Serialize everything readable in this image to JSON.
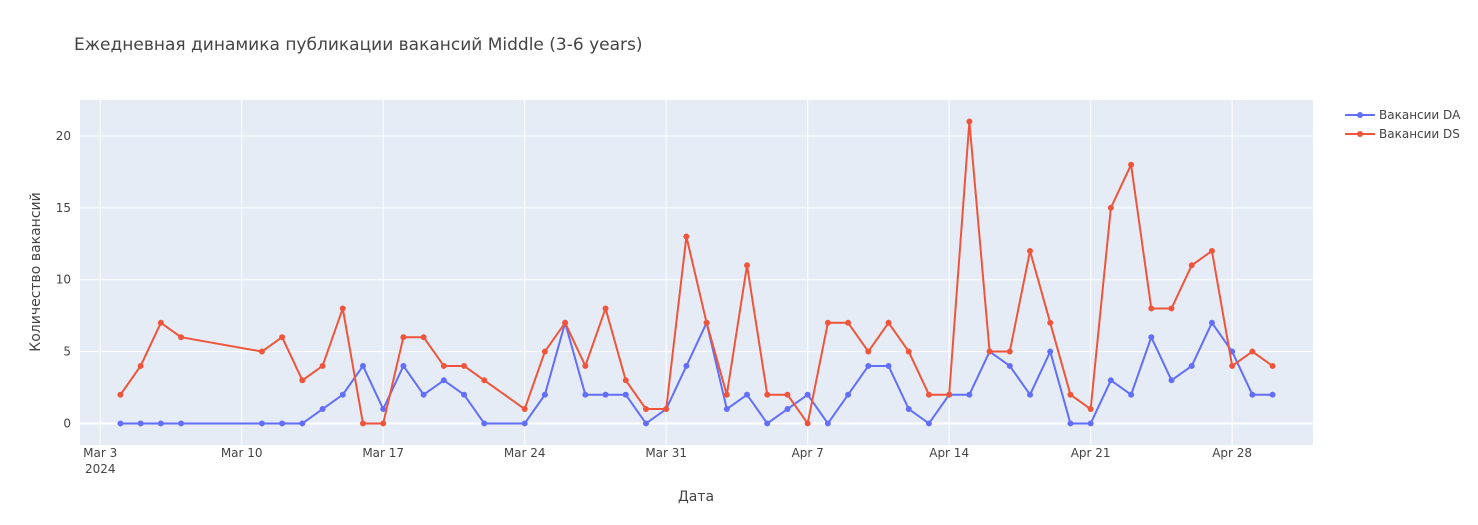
{
  "chart_data": {
    "type": "line",
    "title": "Ежедневная динамика публикации вакансий Middle (3-6 years)",
    "xlabel": "Дата",
    "ylabel": "Количество вакансий",
    "x_axis_type": "date",
    "xlim": [
      "2024-03-02",
      "2024-05-02"
    ],
    "ylim": [
      -1.5,
      22.5
    ],
    "grid": true,
    "legend_position": "top-right",
    "x_ticks": [
      {
        "value": "2024-03-03",
        "label": "Mar 3",
        "sublabel": "2024"
      },
      {
        "value": "2024-03-10",
        "label": "Mar 10"
      },
      {
        "value": "2024-03-17",
        "label": "Mar 17"
      },
      {
        "value": "2024-03-24",
        "label": "Mar 24"
      },
      {
        "value": "2024-03-31",
        "label": "Mar 31"
      },
      {
        "value": "2024-04-07",
        "label": "Apr 7"
      },
      {
        "value": "2024-04-14",
        "label": "Apr 14"
      },
      {
        "value": "2024-04-21",
        "label": "Apr 21"
      },
      {
        "value": "2024-04-28",
        "label": "Apr 28"
      }
    ],
    "y_ticks": [
      0,
      5,
      10,
      15,
      20
    ],
    "series": [
      {
        "name": "Вакансии DA",
        "color": "#636efa",
        "points": [
          [
            "2024-03-04",
            0
          ],
          [
            "2024-03-05",
            0
          ],
          [
            "2024-03-06",
            0
          ],
          [
            "2024-03-07",
            0
          ],
          [
            "2024-03-11",
            0
          ],
          [
            "2024-03-12",
            0
          ],
          [
            "2024-03-13",
            0
          ],
          [
            "2024-03-14",
            1
          ],
          [
            "2024-03-15",
            2
          ],
          [
            "2024-03-16",
            4
          ],
          [
            "2024-03-17",
            1
          ],
          [
            "2024-03-18",
            4
          ],
          [
            "2024-03-19",
            2
          ],
          [
            "2024-03-20",
            3
          ],
          [
            "2024-03-21",
            2
          ],
          [
            "2024-03-22",
            0
          ],
          [
            "2024-03-24",
            0
          ],
          [
            "2024-03-25",
            2
          ],
          [
            "2024-03-26",
            7
          ],
          [
            "2024-03-27",
            2
          ],
          [
            "2024-03-28",
            2
          ],
          [
            "2024-03-29",
            2
          ],
          [
            "2024-03-30",
            0
          ],
          [
            "2024-03-31",
            1
          ],
          [
            "2024-04-01",
            4
          ],
          [
            "2024-04-02",
            7
          ],
          [
            "2024-04-03",
            1
          ],
          [
            "2024-04-04",
            2
          ],
          [
            "2024-04-05",
            0
          ],
          [
            "2024-04-06",
            1
          ],
          [
            "2024-04-07",
            2
          ],
          [
            "2024-04-08",
            0
          ],
          [
            "2024-04-09",
            2
          ],
          [
            "2024-04-10",
            4
          ],
          [
            "2024-04-11",
            4
          ],
          [
            "2024-04-12",
            1
          ],
          [
            "2024-04-13",
            0
          ],
          [
            "2024-04-14",
            2
          ],
          [
            "2024-04-15",
            2
          ],
          [
            "2024-04-16",
            5
          ],
          [
            "2024-04-17",
            4
          ],
          [
            "2024-04-18",
            2
          ],
          [
            "2024-04-19",
            5
          ],
          [
            "2024-04-20",
            0
          ],
          [
            "2024-04-21",
            0
          ],
          [
            "2024-04-22",
            3
          ],
          [
            "2024-04-23",
            2
          ],
          [
            "2024-04-24",
            6
          ],
          [
            "2024-04-25",
            3
          ],
          [
            "2024-04-26",
            4
          ],
          [
            "2024-04-27",
            7
          ],
          [
            "2024-04-28",
            5
          ],
          [
            "2024-04-29",
            2
          ],
          [
            "2024-04-30",
            2
          ]
        ]
      },
      {
        "name": "Вакансии DS",
        "color": "#ef553b",
        "points": [
          [
            "2024-03-04",
            2
          ],
          [
            "2024-03-05",
            4
          ],
          [
            "2024-03-06",
            7
          ],
          [
            "2024-03-07",
            6
          ],
          [
            "2024-03-11",
            5
          ],
          [
            "2024-03-12",
            6
          ],
          [
            "2024-03-13",
            3
          ],
          [
            "2024-03-14",
            4
          ],
          [
            "2024-03-15",
            8
          ],
          [
            "2024-03-16",
            0
          ],
          [
            "2024-03-17",
            0
          ],
          [
            "2024-03-18",
            6
          ],
          [
            "2024-03-19",
            6
          ],
          [
            "2024-03-20",
            4
          ],
          [
            "2024-03-21",
            4
          ],
          [
            "2024-03-22",
            3
          ],
          [
            "2024-03-24",
            1
          ],
          [
            "2024-03-25",
            5
          ],
          [
            "2024-03-26",
            7
          ],
          [
            "2024-03-27",
            4
          ],
          [
            "2024-03-28",
            8
          ],
          [
            "2024-03-29",
            3
          ],
          [
            "2024-03-30",
            1
          ],
          [
            "2024-03-31",
            1
          ],
          [
            "2024-04-01",
            13
          ],
          [
            "2024-04-02",
            7
          ],
          [
            "2024-04-03",
            2
          ],
          [
            "2024-04-04",
            11
          ],
          [
            "2024-04-05",
            2
          ],
          [
            "2024-04-06",
            2
          ],
          [
            "2024-04-07",
            0
          ],
          [
            "2024-04-08",
            7
          ],
          [
            "2024-04-09",
            7
          ],
          [
            "2024-04-10",
            5
          ],
          [
            "2024-04-11",
            7
          ],
          [
            "2024-04-12",
            5
          ],
          [
            "2024-04-13",
            2
          ],
          [
            "2024-04-14",
            2
          ],
          [
            "2024-04-15",
            21
          ],
          [
            "2024-04-16",
            5
          ],
          [
            "2024-04-17",
            5
          ],
          [
            "2024-04-18",
            12
          ],
          [
            "2024-04-19",
            7
          ],
          [
            "2024-04-20",
            2
          ],
          [
            "2024-04-21",
            1
          ],
          [
            "2024-04-22",
            15
          ],
          [
            "2024-04-23",
            18
          ],
          [
            "2024-04-24",
            8
          ],
          [
            "2024-04-25",
            8
          ],
          [
            "2024-04-26",
            11
          ],
          [
            "2024-04-27",
            12
          ],
          [
            "2024-04-28",
            4
          ],
          [
            "2024-04-29",
            5
          ],
          [
            "2024-04-30",
            4
          ]
        ]
      }
    ]
  }
}
